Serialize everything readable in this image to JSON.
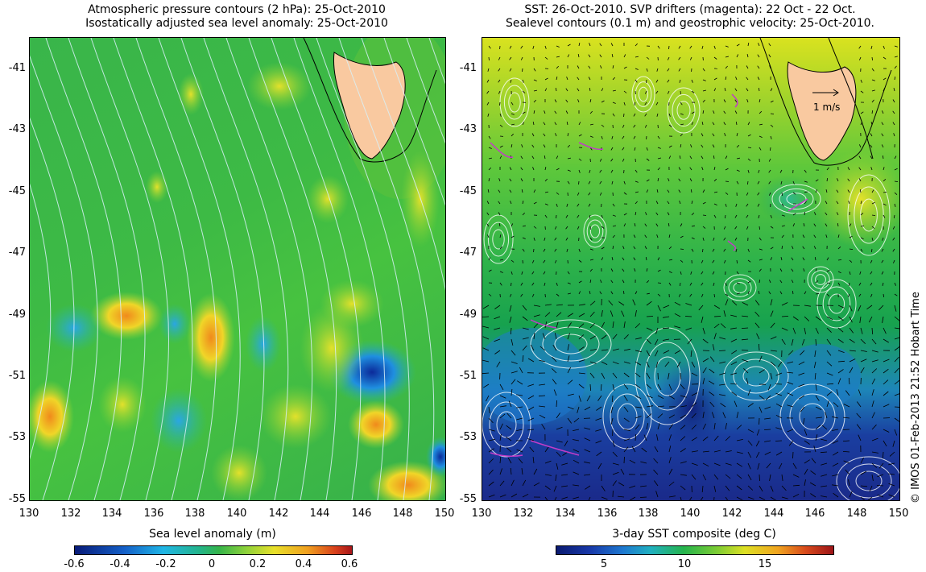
{
  "left_panel": {
    "title_line1": "Atmospheric pressure contours (2 hPa): 25-Oct-2010",
    "title_line2": "Isostatically adjusted sea level anomaly: 25-Oct-2010",
    "colorbar_label": "Sea level anomaly (m)",
    "colorbar_ticks": [
      "-0.6",
      "-0.4",
      "-0.2",
      "0",
      "0.2",
      "0.4",
      "0.6"
    ]
  },
  "right_panel": {
    "title_line1": "SST: 26-Oct-2010. SVP drifters (magenta): 22 Oct - 22 Oct.",
    "title_line2": "Sealevel contours (0.1 m) and geostrophic velocity: 25-Oct-2010.",
    "colorbar_label": "3-day SST composite (deg C)",
    "colorbar_ticks": [
      "5",
      "10",
      "15"
    ],
    "velocity_scale_label": "1 m/s"
  },
  "axes": {
    "lat_ticks": [
      "-41",
      "-43",
      "-45",
      "-47",
      "-49",
      "-51",
      "-53",
      "-55"
    ],
    "lon_ticks": [
      "130",
      "132",
      "134",
      "136",
      "138",
      "140",
      "142",
      "144",
      "146",
      "148",
      "150"
    ]
  },
  "credit": "© IMOS 01-Feb-2013 21:52 Hobart Time",
  "colors": {
    "land": "#f9c9a0",
    "drifter": "#c23cc8"
  }
}
